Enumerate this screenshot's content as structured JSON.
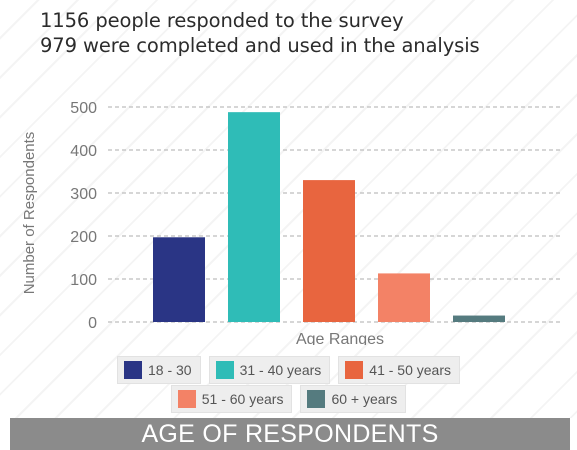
{
  "header": {
    "line1": "1156 people responded to the survey",
    "line2": "979 were completed and used in the analysis"
  },
  "chart_data": {
    "type": "bar",
    "categories": [
      "18 - 30",
      "31 - 40 years",
      "41 - 50 years",
      "51 - 60 years",
      "60 + years"
    ],
    "values": [
      197,
      488,
      330,
      113,
      15
    ],
    "colors": [
      "#2a3585",
      "#2fbcb7",
      "#e8653f",
      "#f38266",
      "#557b7f"
    ],
    "xlabel": "Age Ranges",
    "ylabel": "Number of Respondents",
    "ylim": [
      0,
      500
    ],
    "yticks": [
      "0",
      "100",
      "200",
      "300",
      "400",
      "500"
    ],
    "grid": true,
    "legend_position": "bottom"
  },
  "footer": {
    "title": "AGE OF RESPONDENTS"
  }
}
